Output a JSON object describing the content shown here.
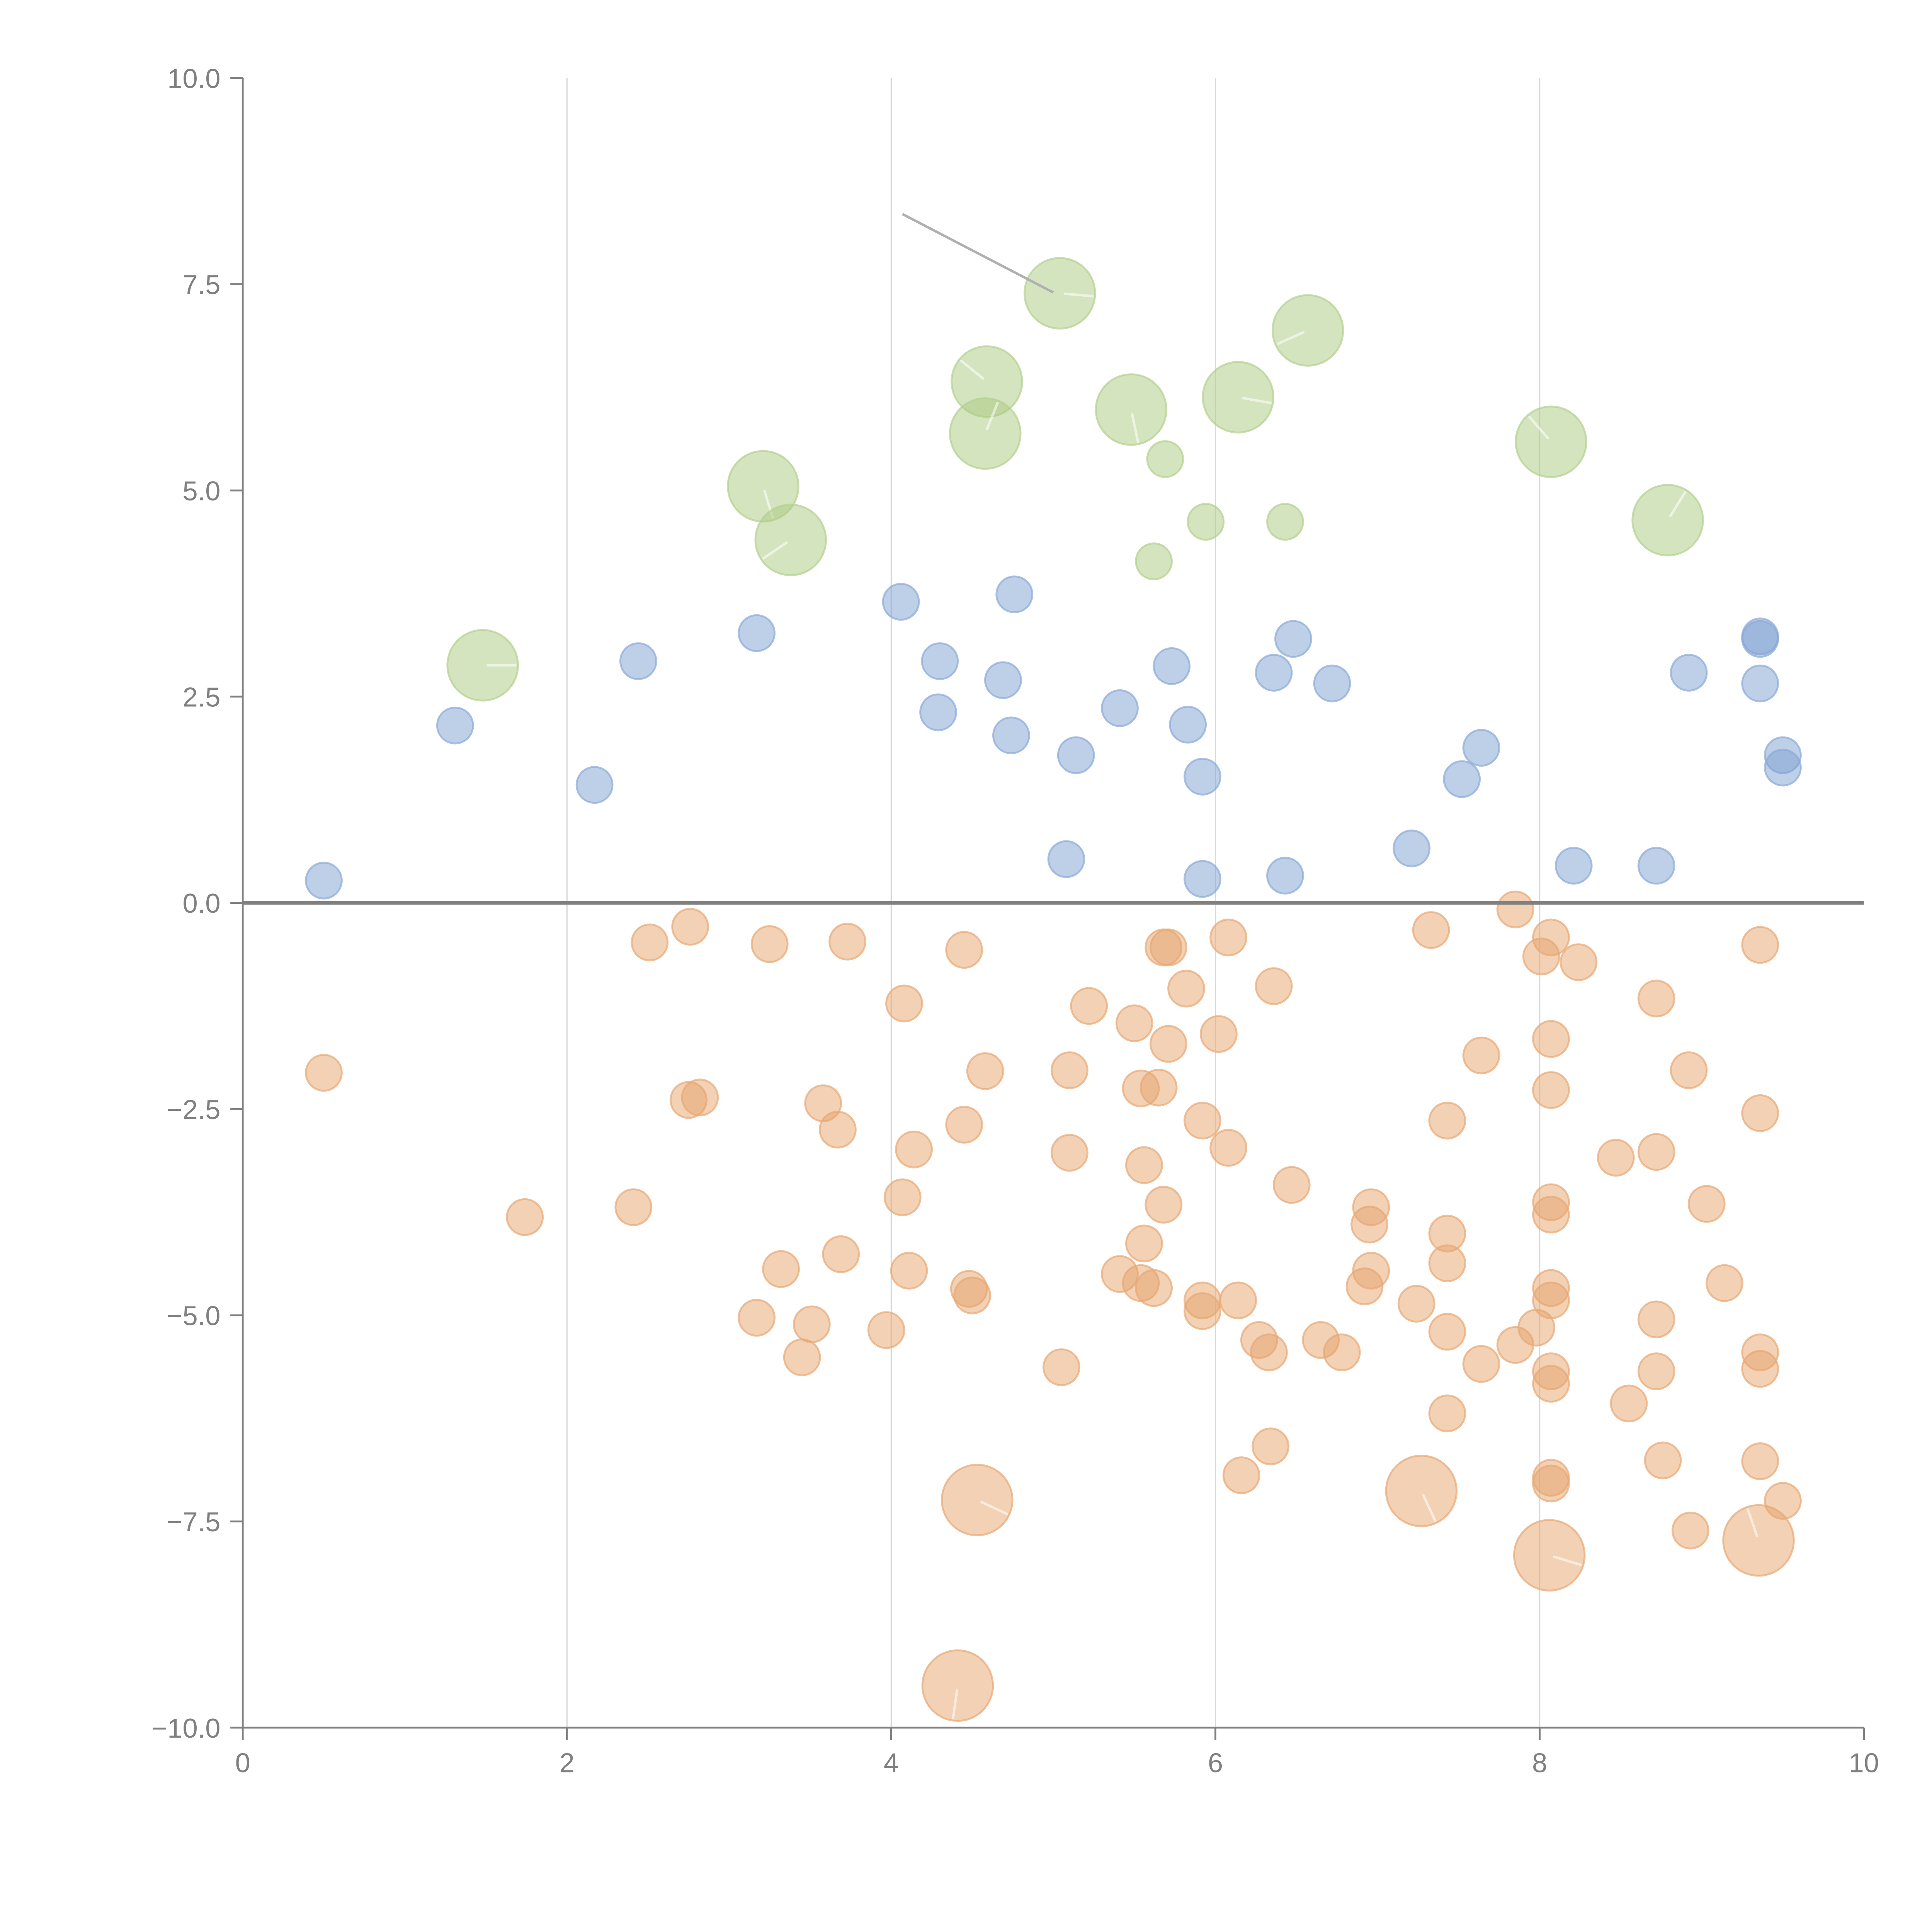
{
  "chart_data": {
    "type": "scatter",
    "title": "",
    "xlabel": "",
    "ylabel": "",
    "xlim": [
      0,
      10
    ],
    "ylim": [
      -10,
      10
    ],
    "grid": "vertical",
    "x_ticks": [
      "0",
      "2",
      "4",
      "6",
      "8",
      "10"
    ],
    "x_tick_values": [
      0,
      2,
      4,
      6,
      8,
      10
    ],
    "y_ticks": [
      "10.0",
      "7.5",
      "5.0",
      "2.5",
      "0.0",
      "−2.5",
      "−5.0",
      "−7.5",
      "−10.0"
    ],
    "y_tick_values": [
      10,
      7.5,
      5,
      2.5,
      0,
      -2.5,
      -5,
      -7.5,
      -10
    ],
    "reference_line_y": 0,
    "annotation": {
      "from": [
        4.07,
        8.35
      ],
      "to": [
        5.0,
        7.4
      ]
    },
    "series": [
      {
        "name": "blue",
        "color": "#7ea0d2",
        "stroke": "#8aaad8",
        "size": "small",
        "points": [
          [
            0.5,
            0.27
          ],
          [
            1.31,
            2.15
          ],
          [
            2.17,
            1.43
          ],
          [
            2.44,
            2.93
          ],
          [
            3.17,
            3.27
          ],
          [
            4.06,
            3.65
          ],
          [
            4.3,
            2.93
          ],
          [
            4.29,
            2.31
          ],
          [
            4.69,
            2.7
          ],
          [
            4.74,
            2.03
          ],
          [
            4.76,
            3.74
          ],
          [
            5.08,
            0.53
          ],
          [
            5.14,
            1.79
          ],
          [
            5.41,
            2.36
          ],
          [
            5.73,
            2.87
          ],
          [
            5.83,
            2.16
          ],
          [
            5.92,
            1.53
          ],
          [
            5.92,
            0.29
          ],
          [
            6.36,
            2.79
          ],
          [
            6.43,
            0.33
          ],
          [
            6.48,
            3.2
          ],
          [
            6.72,
            2.66
          ],
          [
            7.21,
            0.66
          ],
          [
            7.52,
            1.5
          ],
          [
            7.64,
            1.88
          ],
          [
            8.21,
            0.45
          ],
          [
            8.72,
            0.45
          ],
          [
            8.92,
            2.79
          ],
          [
            9.36,
            3.23
          ],
          [
            9.36,
            3.2
          ],
          [
            9.36,
            2.66
          ],
          [
            9.5,
            1.79
          ],
          [
            9.5,
            1.64
          ]
        ]
      },
      {
        "name": "green",
        "color": "#a9c97f",
        "stroke": "#b4d08e",
        "points": [
          [
            1.48,
            2.88,
            "large"
          ],
          [
            3.21,
            5.05,
            "large"
          ],
          [
            3.38,
            4.4,
            "large"
          ],
          [
            4.59,
            6.32,
            "large"
          ],
          [
            4.58,
            5.69,
            "large"
          ],
          [
            5.04,
            7.39,
            "large"
          ],
          [
            5.48,
            5.98,
            "large"
          ],
          [
            5.69,
            5.38,
            "small"
          ],
          [
            5.62,
            4.14,
            "small"
          ],
          [
            5.94,
            4.62,
            "small"
          ],
          [
            6.14,
            6.13,
            "large"
          ],
          [
            6.43,
            4.62,
            "small"
          ],
          [
            6.57,
            6.94,
            "large"
          ],
          [
            8.07,
            5.59,
            "large"
          ],
          [
            8.79,
            4.64,
            "large"
          ]
        ]
      },
      {
        "name": "orange",
        "color": "#e6a36b",
        "stroke": "#e8a874",
        "points": [
          [
            0.5,
            -2.06,
            "small"
          ],
          [
            1.74,
            -3.81,
            "small"
          ],
          [
            2.41,
            -3.69,
            "small"
          ],
          [
            2.51,
            -0.48,
            "small"
          ],
          [
            2.76,
            -0.29,
            "small"
          ],
          [
            2.75,
            -2.39,
            "small"
          ],
          [
            2.82,
            -2.36,
            "small"
          ],
          [
            3.17,
            -5.03,
            "small"
          ],
          [
            3.25,
            -0.5,
            "small"
          ],
          [
            3.32,
            -4.44,
            "small"
          ],
          [
            3.45,
            -5.51,
            "small"
          ],
          [
            3.51,
            -5.11,
            "small"
          ],
          [
            3.58,
            -2.43,
            "small"
          ],
          [
            3.67,
            -2.75,
            "small"
          ],
          [
            3.69,
            -4.26,
            "small"
          ],
          [
            3.73,
            -0.47,
            "small"
          ],
          [
            3.97,
            -5.18,
            "small"
          ],
          [
            4.08,
            -1.22,
            "small"
          ],
          [
            4.07,
            -3.57,
            "small"
          ],
          [
            4.11,
            -4.46,
            "small"
          ],
          [
            4.14,
            -2.99,
            "small"
          ],
          [
            4.45,
            -0.57,
            "small"
          ],
          [
            4.45,
            -2.69,
            "small"
          ],
          [
            4.48,
            -4.68,
            "small"
          ],
          [
            4.5,
            -4.76,
            "small"
          ],
          [
            4.53,
            -7.24,
            "large"
          ],
          [
            4.41,
            -9.49,
            "large"
          ],
          [
            4.58,
            -2.04,
            "small"
          ],
          [
            5.05,
            -5.63,
            "small"
          ],
          [
            5.1,
            -3.03,
            "small"
          ],
          [
            5.1,
            -2.03,
            "small"
          ],
          [
            5.22,
            -1.25,
            "small"
          ],
          [
            5.41,
            -4.5,
            "small"
          ],
          [
            5.5,
            -1.46,
            "small"
          ],
          [
            5.54,
            -2.25,
            "small"
          ],
          [
            5.54,
            -4.61,
            "small"
          ],
          [
            5.56,
            -4.13,
            "small"
          ],
          [
            5.56,
            -3.18,
            "small"
          ],
          [
            5.62,
            -4.67,
            "small"
          ],
          [
            5.65,
            -2.24,
            "small"
          ],
          [
            5.68,
            -0.54,
            "small"
          ],
          [
            5.71,
            -0.54,
            "small"
          ],
          [
            5.68,
            -3.66,
            "small"
          ],
          [
            5.71,
            -1.71,
            "small"
          ],
          [
            5.82,
            -1.04,
            "small"
          ],
          [
            5.92,
            -2.64,
            "small"
          ],
          [
            5.92,
            -4.82,
            "small"
          ],
          [
            5.92,
            -4.95,
            "small"
          ],
          [
            6.02,
            -1.59,
            "small"
          ],
          [
            6.08,
            -0.42,
            "small"
          ],
          [
            6.08,
            -2.97,
            "small"
          ],
          [
            6.14,
            -4.82,
            "small"
          ],
          [
            6.16,
            -6.94,
            "small"
          ],
          [
            6.27,
            -5.3,
            "small"
          ],
          [
            6.33,
            -5.45,
            "small"
          ],
          [
            6.34,
            -6.59,
            "small"
          ],
          [
            6.36,
            -1.01,
            "small"
          ],
          [
            6.47,
            -3.42,
            "small"
          ],
          [
            6.65,
            -5.3,
            "small"
          ],
          [
            6.78,
            -5.45,
            "small"
          ],
          [
            6.92,
            -4.65,
            "small"
          ],
          [
            6.95,
            -3.9,
            "small"
          ],
          [
            6.96,
            -3.69,
            "small"
          ],
          [
            6.96,
            -4.46,
            "small"
          ],
          [
            7.24,
            -4.86,
            "small"
          ],
          [
            7.27,
            -7.13,
            "large"
          ],
          [
            7.33,
            -0.33,
            "small"
          ],
          [
            7.43,
            -6.19,
            "small"
          ],
          [
            7.43,
            -4.01,
            "small"
          ],
          [
            7.43,
            -4.37,
            "small"
          ],
          [
            7.43,
            -5.2,
            "small"
          ],
          [
            7.43,
            -2.64,
            "small"
          ],
          [
            7.64,
            -1.85,
            "small"
          ],
          [
            7.64,
            -5.59,
            "small"
          ],
          [
            7.85,
            -0.08,
            "small"
          ],
          [
            7.85,
            -5.36,
            "small"
          ],
          [
            7.98,
            -5.15,
            "small"
          ],
          [
            8.01,
            -0.65,
            "small"
          ],
          [
            8.07,
            -0.42,
            "small"
          ],
          [
            8.07,
            -1.65,
            "small"
          ],
          [
            8.07,
            -2.27,
            "small"
          ],
          [
            8.07,
            -3.63,
            "small"
          ],
          [
            8.07,
            -3.78,
            "small"
          ],
          [
            8.07,
            -4.67,
            "small"
          ],
          [
            8.07,
            -4.82,
            "small"
          ],
          [
            8.07,
            -5.68,
            "small"
          ],
          [
            8.07,
            -5.83,
            "small"
          ],
          [
            8.07,
            -6.97,
            "small"
          ],
          [
            8.07,
            -7.04,
            "small"
          ],
          [
            8.06,
            -7.91,
            "large"
          ],
          [
            8.24,
            -0.72,
            "small"
          ],
          [
            8.47,
            -3.09,
            "small"
          ],
          [
            8.55,
            -6.07,
            "small"
          ],
          [
            8.72,
            -1.16,
            "small"
          ],
          [
            8.72,
            -3.02,
            "small"
          ],
          [
            8.72,
            -5.05,
            "small"
          ],
          [
            8.72,
            -5.68,
            "small"
          ],
          [
            8.76,
            -6.76,
            "small"
          ],
          [
            8.92,
            -2.03,
            "small"
          ],
          [
            8.93,
            -7.61,
            "small"
          ],
          [
            9.03,
            -3.65,
            "small"
          ],
          [
            9.14,
            -4.61,
            "small"
          ],
          [
            9.36,
            -0.51,
            "small"
          ],
          [
            9.36,
            -2.55,
            "small"
          ],
          [
            9.36,
            -5.45,
            "small"
          ],
          [
            9.36,
            -5.65,
            "small"
          ],
          [
            9.36,
            -6.77,
            "small"
          ],
          [
            9.35,
            -7.73,
            "large"
          ],
          [
            9.5,
            -7.25,
            "small"
          ]
        ]
      }
    ]
  }
}
